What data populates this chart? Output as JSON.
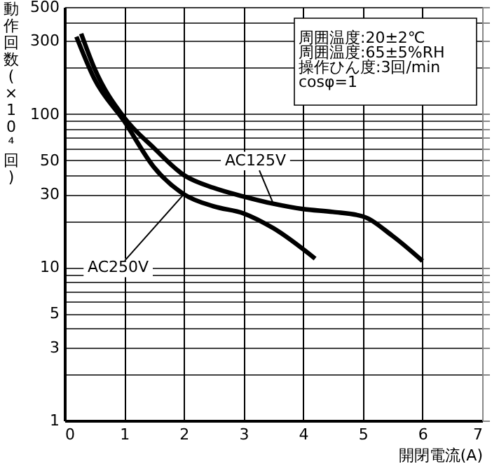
{
  "chart_data": {
    "type": "line",
    "xlabel": "開閉電流(A)",
    "ylabel": "動作回数(×10⁴回)",
    "log": "y",
    "grid": true,
    "legend": false,
    "marker": "none",
    "line_style": "solid",
    "xlim": [
      0,
      7
    ],
    "xticks": [
      0,
      1,
      2,
      3,
      4,
      5,
      6,
      7
    ],
    "ylim": [
      1,
      500
    ],
    "yticks": [
      1,
      {
        "value": 2,
        "label": null
      },
      3,
      {
        "value": 4,
        "label": null
      },
      5,
      {
        "value": 6,
        "label": null
      },
      {
        "value": 7,
        "label": null
      },
      {
        "value": 8,
        "label": null
      },
      {
        "value": 9,
        "label": null
      },
      10,
      {
        "value": 20,
        "label": null
      },
      30,
      {
        "value": 40,
        "label": null
      },
      50,
      {
        "value": 60,
        "label": null
      },
      {
        "value": 70,
        "label": null
      },
      {
        "value": 80,
        "label": null
      },
      {
        "value": 90,
        "label": null
      },
      100,
      {
        "value": 200,
        "label": null
      },
      300,
      {
        "value": 400,
        "label": null
      },
      500
    ],
    "series": [
      {
        "name": "AC125V",
        "color": "#000000",
        "x": [
          0.28,
          0.5,
          1,
          1.5,
          2,
          2.5,
          3,
          3.5,
          4,
          4.5,
          5,
          5.5,
          6
        ],
        "values": [
          335,
          200,
          95,
          60,
          40,
          33,
          29,
          26,
          24,
          23,
          21.5,
          16,
          11
        ]
      },
      {
        "name": "AC250V",
        "color": "#000000",
        "x": [
          0.2,
          0.5,
          1,
          1.5,
          2,
          2.5,
          3,
          3.5,
          4.2
        ],
        "values": [
          320,
          170,
          90,
          45,
          30,
          25,
          22.5,
          18,
          11.4
        ]
      }
    ],
    "annotations": [
      "周囲温度:20±2℃",
      "周囲温度:65±5%RH",
      "操作ひん度:3回/min",
      "cosφ=1"
    ]
  }
}
